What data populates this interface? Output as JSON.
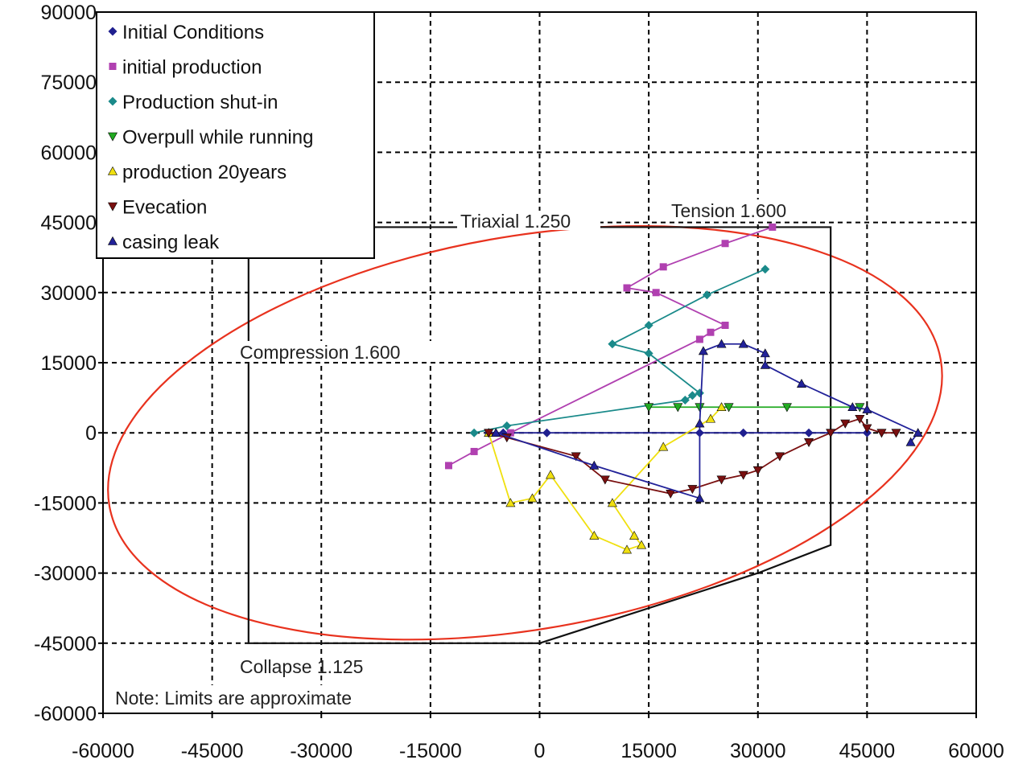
{
  "chart_data": {
    "type": "line",
    "title": "",
    "xlabel": "",
    "ylabel": "",
    "xlim": [
      -60000,
      60000
    ],
    "ylim": [
      -60000,
      90000
    ],
    "xticks": [
      "-60000",
      "-45000",
      "-30000",
      "-15000",
      "0",
      "15000",
      "30000",
      "45000",
      "60000"
    ],
    "yticks": [
      "90000",
      "75000",
      "60000",
      "45000",
      "30000",
      "15000",
      "0",
      "-15000",
      "-30000",
      "-45000",
      "-60000"
    ],
    "grid": true,
    "legend_position": "top-left",
    "series": [
      {
        "name": "Initial Conditions",
        "color": "#1f1f8f",
        "marker": "diamond",
        "points": [
          [
            -7000,
            0
          ],
          [
            -5000,
            0
          ],
          [
            1000,
            0
          ],
          [
            22000,
            0
          ],
          [
            28000,
            0
          ],
          [
            37000,
            0
          ],
          [
            45000,
            0
          ]
        ]
      },
      {
        "name": "initial production",
        "color": "#b040b0",
        "marker": "square",
        "points": [
          [
            -12500,
            -7000
          ],
          [
            -9000,
            -4000
          ],
          [
            -4000,
            0
          ],
          [
            22000,
            20000
          ],
          [
            23500,
            21500
          ],
          [
            25500,
            23000
          ],
          [
            16000,
            30000
          ],
          [
            12000,
            31000
          ],
          [
            17000,
            35500
          ],
          [
            25500,
            40500
          ],
          [
            32000,
            44000
          ]
        ]
      },
      {
        "name": "Production shut-in",
        "color": "#1a8a8a",
        "marker": "diamond",
        "points": [
          [
            -9000,
            0
          ],
          [
            -4500,
            1500
          ],
          [
            20000,
            7000
          ],
          [
            21000,
            8000
          ],
          [
            22000,
            8500
          ],
          [
            15000,
            17000
          ],
          [
            10000,
            19000
          ],
          [
            15000,
            23000
          ],
          [
            23000,
            29500
          ],
          [
            31000,
            35000
          ]
        ]
      },
      {
        "name": "Overpull while running",
        "color": "#22aa22",
        "marker": "triangle-down",
        "points": [
          [
            15000,
            5500
          ],
          [
            19000,
            5500
          ],
          [
            22000,
            5500
          ],
          [
            26000,
            5500
          ],
          [
            34000,
            5500
          ],
          [
            44000,
            5500
          ]
        ]
      },
      {
        "name": "production 20years",
        "color": "#f0e010",
        "marker": "triangle-up",
        "points": [
          [
            -7000,
            0
          ],
          [
            -4000,
            -15000
          ],
          [
            -1000,
            -14000
          ],
          [
            1500,
            -9000
          ],
          [
            7500,
            -22000
          ],
          [
            12000,
            -25000
          ],
          [
            14000,
            -24000
          ],
          [
            13000,
            -22000
          ],
          [
            10000,
            -15000
          ],
          [
            17000,
            -3000
          ],
          [
            23500,
            3000
          ],
          [
            25000,
            5500
          ]
        ]
      },
      {
        "name": "Evecation",
        "color": "#7a1010",
        "marker": "triangle-down",
        "points": [
          [
            -7000,
            0
          ],
          [
            -4500,
            -1000
          ],
          [
            5000,
            -5000
          ],
          [
            9000,
            -10000
          ],
          [
            18000,
            -13000
          ],
          [
            21000,
            -12000
          ],
          [
            25000,
            -10000
          ],
          [
            28000,
            -9000
          ],
          [
            30000,
            -8000
          ],
          [
            33000,
            -5000
          ],
          [
            37000,
            -2000
          ],
          [
            40000,
            0
          ],
          [
            42000,
            2000
          ],
          [
            44000,
            3000
          ],
          [
            45000,
            1000
          ],
          [
            47000,
            0
          ],
          [
            49000,
            0
          ]
        ]
      },
      {
        "name": "casing leak",
        "color": "#222299",
        "marker": "triangle-up",
        "points": [
          [
            -6000,
            0
          ],
          [
            7500,
            -7000
          ],
          [
            22000,
            -14000
          ],
          [
            22000,
            2000
          ],
          [
            22500,
            17500
          ],
          [
            25000,
            19000
          ],
          [
            28000,
            19000
          ],
          [
            31000,
            17000
          ],
          [
            31000,
            14500
          ],
          [
            36000,
            10500
          ],
          [
            43000,
            5500
          ],
          [
            45000,
            5000
          ],
          [
            52000,
            0
          ],
          [
            51000,
            -2000
          ]
        ]
      }
    ],
    "limits": [
      {
        "name": "Triaxial 1.250",
        "color": "#e8321e",
        "shape": "ellipse",
        "center": [
          -2000,
          0
        ],
        "rx": 58000,
        "ry": 42000,
        "rotation_deg": 10
      },
      {
        "name": "Tension 1.600 / Collapse 1.125 / Compression 1.600",
        "color": "#111111",
        "shape": "polyline",
        "points": [
          [
            -40000,
            44000
          ],
          [
            40000,
            44000
          ],
          [
            40000,
            -24000
          ],
          [
            30000,
            -30000
          ],
          [
            0,
            -45000
          ],
          [
            -40000,
            -45000
          ],
          [
            -40000,
            44000
          ]
        ]
      }
    ],
    "annotations": [
      "Triaxial 1.250",
      "Tension 1.600",
      "Compression 1.600",
      "Collapse 1.125",
      "Note: Limits are approximate"
    ]
  }
}
